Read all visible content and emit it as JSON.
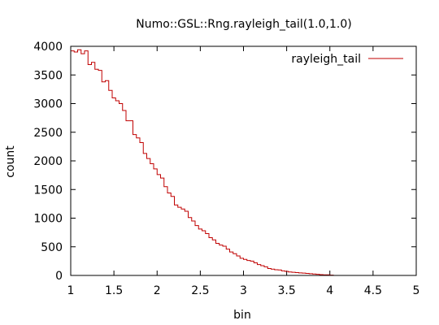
{
  "chart_data": {
    "type": "line",
    "step": true,
    "title": "Numo::GSL::Rng.rayleigh_tail(1.0,1.0)",
    "xlabel": "bin",
    "ylabel": "count",
    "xlim": [
      1,
      5
    ],
    "ylim": [
      0,
      4000
    ],
    "x_ticks": [
      1,
      1.5,
      2,
      2.5,
      3,
      3.5,
      4,
      4.5,
      5
    ],
    "x_tick_labels": [
      "1",
      "1.5",
      "2",
      "2.5",
      "3",
      "3.5",
      "4",
      "4.5",
      "5"
    ],
    "y_ticks": [
      0,
      500,
      1000,
      1500,
      2000,
      2500,
      3000,
      3500,
      4000
    ],
    "y_tick_labels": [
      "0",
      "500",
      "1000",
      "1500",
      "2000",
      "2500",
      "3000",
      "3500",
      "4000"
    ],
    "grid": false,
    "legend_position": "top-right",
    "bin_width": 0.04,
    "series": [
      {
        "name": "rayleigh_tail",
        "color": "#c00000",
        "x": [
          1.0,
          1.04,
          1.08,
          1.12,
          1.16,
          1.2,
          1.24,
          1.28,
          1.32,
          1.36,
          1.4,
          1.44,
          1.48,
          1.52,
          1.56,
          1.6,
          1.64,
          1.68,
          1.72,
          1.76,
          1.8,
          1.84,
          1.88,
          1.92,
          1.96,
          2.0,
          2.04,
          2.08,
          2.12,
          2.16,
          2.2,
          2.24,
          2.28,
          2.32,
          2.36,
          2.4,
          2.44,
          2.48,
          2.52,
          2.56,
          2.6,
          2.64,
          2.68,
          2.72,
          2.76,
          2.8,
          2.84,
          2.88,
          2.92,
          2.96,
          3.0,
          3.04,
          3.08,
          3.12,
          3.16,
          3.2,
          3.24,
          3.28,
          3.32,
          3.36,
          3.4,
          3.44,
          3.48,
          3.52,
          3.56,
          3.6,
          3.64,
          3.68,
          3.72,
          3.76,
          3.8,
          3.84,
          3.88,
          3.92,
          3.96,
          4.0,
          4.04
        ],
        "values": [
          3920,
          3900,
          3940,
          3870,
          3920,
          3680,
          3720,
          3600,
          3580,
          3380,
          3400,
          3230,
          3100,
          3050,
          3000,
          2880,
          2700,
          2700,
          2460,
          2400,
          2320,
          2130,
          2040,
          1950,
          1860,
          1760,
          1700,
          1550,
          1440,
          1380,
          1230,
          1190,
          1160,
          1120,
          1010,
          950,
          870,
          810,
          780,
          730,
          660,
          620,
          560,
          530,
          510,
          460,
          410,
          380,
          340,
          300,
          280,
          260,
          250,
          220,
          190,
          170,
          150,
          120,
          110,
          100,
          95,
          80,
          70,
          60,
          55,
          50,
          45,
          40,
          35,
          30,
          25,
          20,
          15,
          10,
          10,
          5,
          0
        ]
      }
    ]
  }
}
